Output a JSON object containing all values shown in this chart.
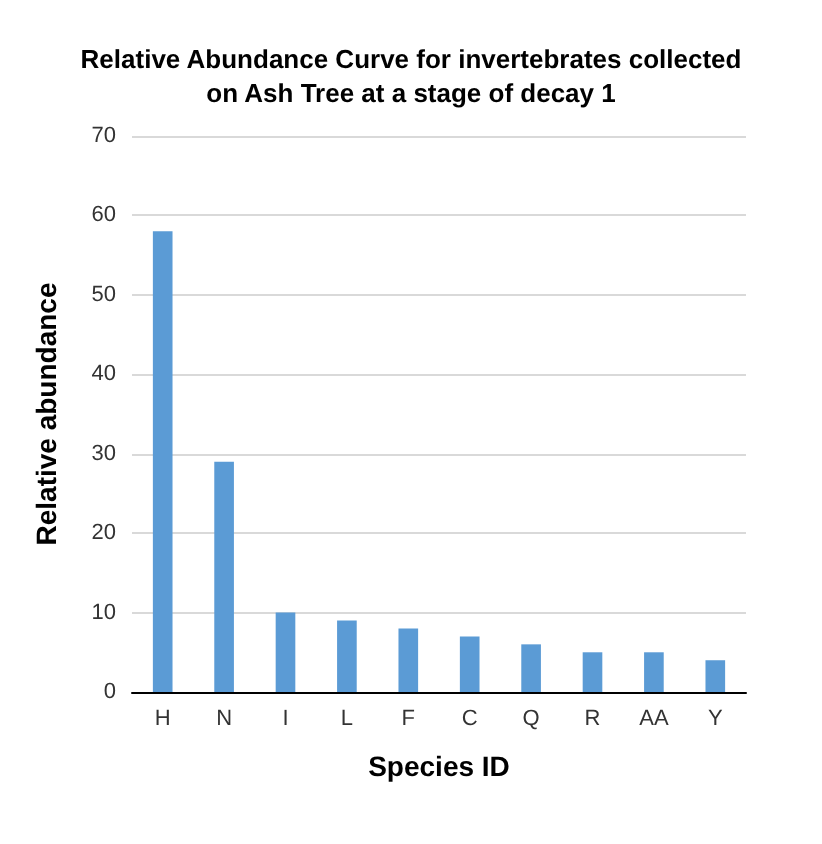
{
  "chart_data": {
    "type": "bar",
    "title": "Relative Abundance Curve for invertebrates collected\non Ash Tree at a stage of decay 1",
    "xlabel": "Species ID",
    "ylabel": "Relative abundance",
    "categories": [
      "H",
      "N",
      "I",
      "L",
      "F",
      "C",
      "Q",
      "R",
      "AA",
      "Y"
    ],
    "values": [
      58,
      29,
      10,
      9,
      8,
      7,
      6,
      5,
      5,
      4
    ],
    "color": "#5b9bd5",
    "ylim": [
      0,
      70
    ],
    "yticks": [
      0,
      10,
      20,
      30,
      40,
      50,
      60,
      70
    ],
    "grid": "y"
  }
}
